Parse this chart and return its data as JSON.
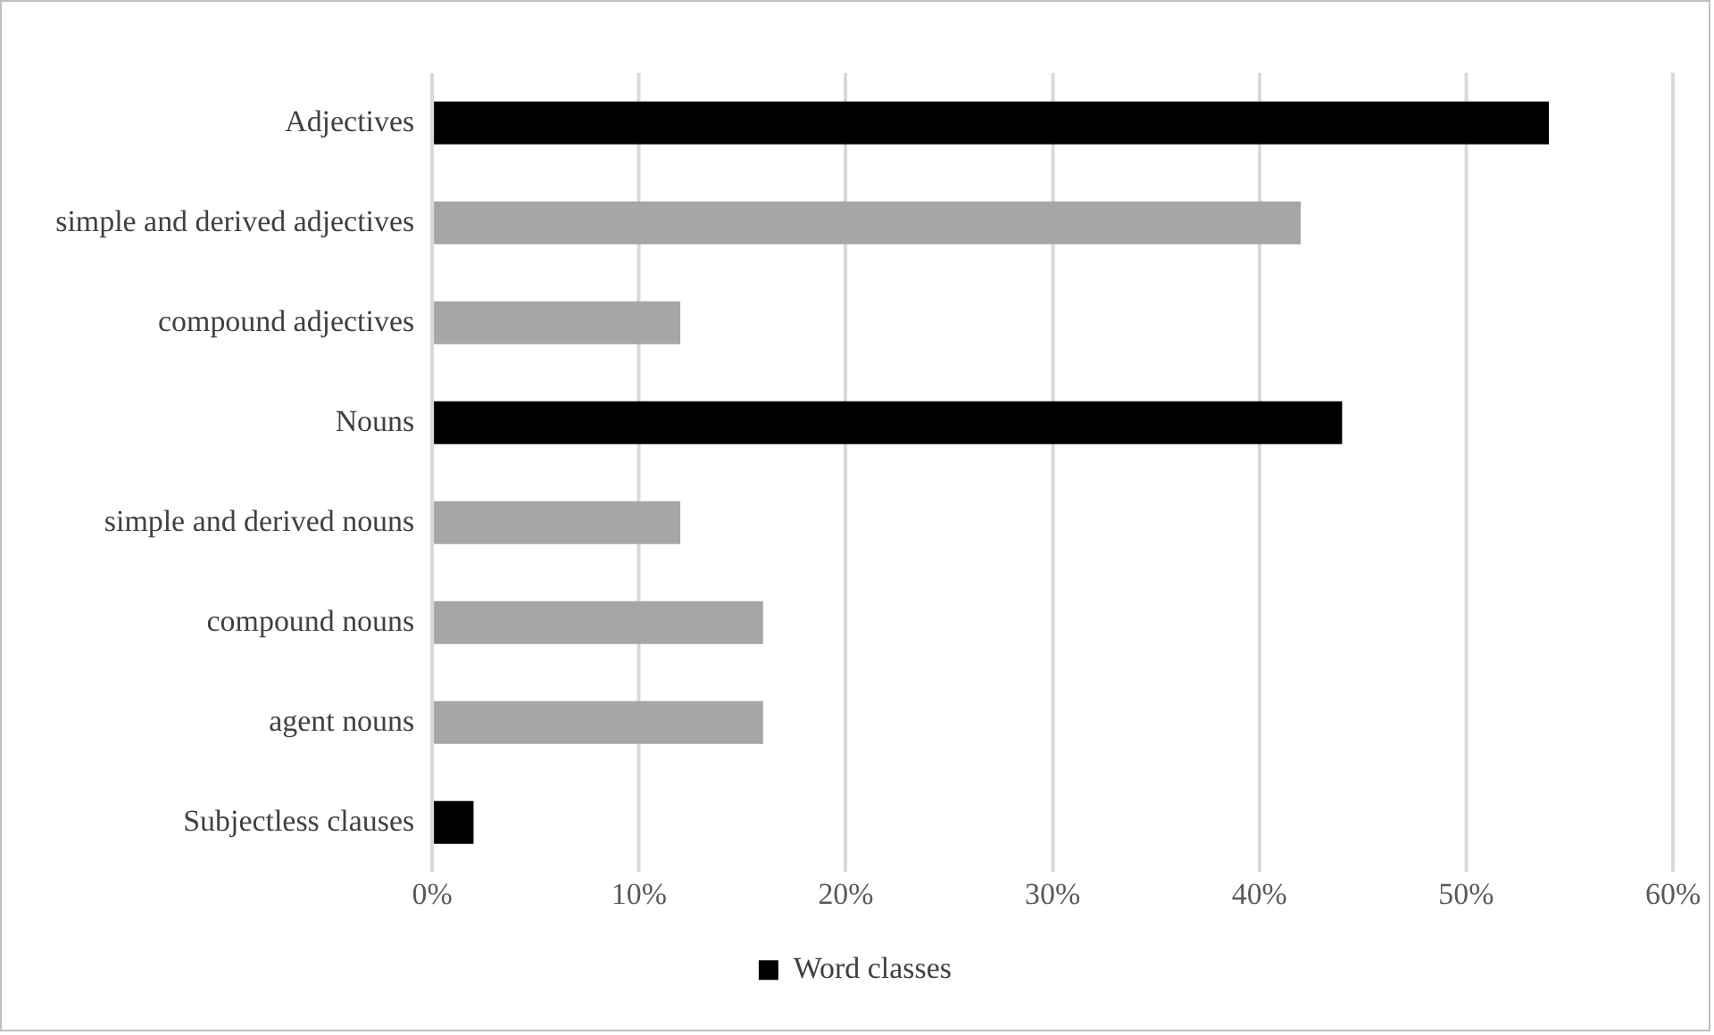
{
  "chart_data": {
    "type": "bar",
    "orientation": "horizontal",
    "categories": [
      "Adjectives",
      "simple and derived adjectives",
      "compound adjectives",
      "Nouns",
      "simple and derived nouns",
      "compound nouns",
      "agent nouns",
      "Subjectless clauses"
    ],
    "series": [
      {
        "name": "Word classes",
        "color": "#000000",
        "colors": [
          "#000000",
          "#a6a6a6",
          "#a6a6a6",
          "#000000",
          "#a6a6a6",
          "#a6a6a6",
          "#a6a6a6",
          "#000000"
        ],
        "values": [
          54,
          42,
          12,
          44,
          12,
          16,
          16,
          2
        ]
      }
    ],
    "xlim": [
      0,
      60
    ],
    "xticks": [
      {
        "value": 0,
        "label": "0%"
      },
      {
        "value": 10,
        "label": "10%"
      },
      {
        "value": 20,
        "label": "20%"
      },
      {
        "value": 30,
        "label": "30%"
      },
      {
        "value": 40,
        "label": "40%"
      },
      {
        "value": 50,
        "label": "50%"
      },
      {
        "value": 60,
        "label": "60%"
      }
    ],
    "grid": "x",
    "legend": "bottom"
  }
}
